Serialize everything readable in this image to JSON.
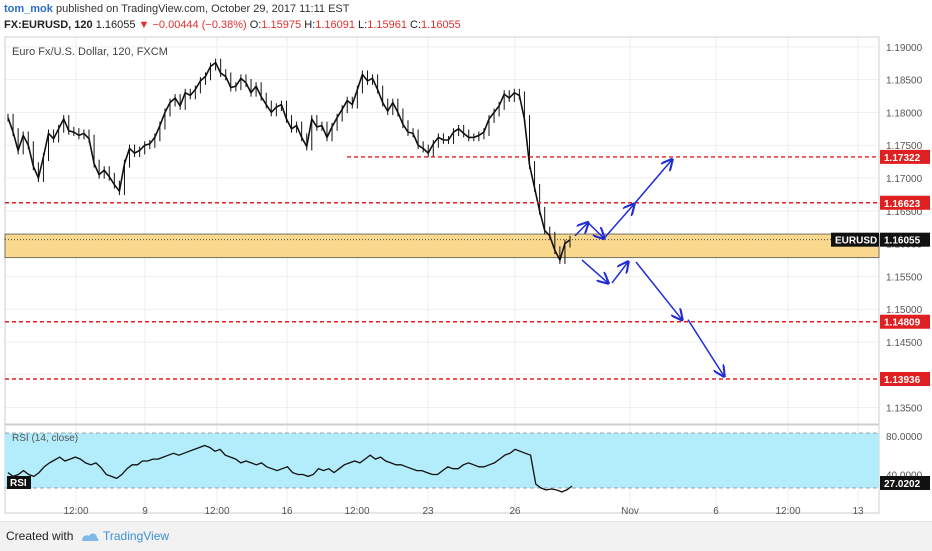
{
  "header": {
    "author": "tom_mok",
    "published_text": " published on TradingView.com, October 29, 2017 11:11 EST",
    "symbol": "FX:EURUSD, 120",
    "price": "1.16055",
    "change": "−0.00444 (−0.38%)",
    "ohlc": {
      "o_label": "O:",
      "o": "1.15975",
      "h_label": "H:",
      "h": "1.16091",
      "l_label": "L:",
      "l": "1.15961",
      "c_label": "C:",
      "c": "1.16055"
    }
  },
  "colors": {
    "up": "#1a1a1a",
    "down": "#1a1a1a",
    "level_line": "#e02020",
    "zone_fill": "#fad98e",
    "arrow": "#1f2dd6",
    "rsi_band": "#b3ecfa",
    "rsi_line": "#111111"
  },
  "chart_data": [
    {
      "type": "line",
      "description_label": "Euro Fx/U.S. Dollar, 120, FXCM",
      "x_ticks": [
        "12:00",
        "9",
        "12:00",
        "16",
        "12:00",
        "23",
        "26",
        "Nov",
        "6",
        "12:00",
        "13"
      ],
      "y_ticks": [
        "1.19000",
        "1.18500",
        "1.18000",
        "1.17500",
        "1.17000",
        "1.16500",
        "1.16000",
        "1.15500",
        "1.15000",
        "1.14500",
        "1.14000",
        "1.13500"
      ],
      "ylim": [
        1.1325,
        1.1915
      ],
      "series": [
        {
          "name": "EURUSD",
          "close": [
            1.1792,
            1.177,
            1.1742,
            1.1765,
            1.175,
            1.1718,
            1.17,
            1.1732,
            1.1768,
            1.176,
            1.1775,
            1.179,
            1.1772,
            1.177,
            1.1765,
            1.1768,
            1.176,
            1.1722,
            1.1705,
            1.1712,
            1.1702,
            1.169,
            1.168,
            1.1722,
            1.1745,
            1.1738,
            1.1742,
            1.175,
            1.1752,
            1.1762,
            1.178,
            1.18,
            1.1815,
            1.1822,
            1.181,
            1.183,
            1.1826,
            1.1835,
            1.1848,
            1.1855,
            1.187,
            1.1876,
            1.186,
            1.1855,
            1.1838,
            1.184,
            1.1852,
            1.1845,
            1.183,
            1.184,
            1.1824,
            1.1812,
            1.18,
            1.1808,
            1.1812,
            1.179,
            1.1775,
            1.178,
            1.1762,
            1.1748,
            1.179,
            1.1778,
            1.178,
            1.1762,
            1.1778,
            1.1792,
            1.1805,
            1.1818,
            1.1812,
            1.1835,
            1.1858,
            1.1848,
            1.1852,
            1.1835,
            1.1815,
            1.1802,
            1.1815,
            1.18,
            1.1782,
            1.177,
            1.1768,
            1.175,
            1.1745,
            1.1738,
            1.1752,
            1.1762,
            1.1758,
            1.1758,
            1.177,
            1.1775,
            1.1768,
            1.1762,
            1.1762,
            1.1765,
            1.177,
            1.179,
            1.18,
            1.181,
            1.1828,
            1.1822,
            1.183,
            1.1826,
            1.179,
            1.172,
            1.1685,
            1.165,
            1.162,
            1.1612,
            1.159,
            1.1575,
            1.16,
            1.1606
          ],
          "last_value": "1.16055"
        }
      ],
      "levels": [
        {
          "value": "1.17322",
          "start": "day 13 12:00"
        },
        {
          "value": "1.16623",
          "start": "chart start"
        },
        {
          "value": "1.14809",
          "start": "chart start"
        },
        {
          "value": "1.13936",
          "start": "chart start"
        }
      ],
      "zone": {
        "top": 1.16146,
        "bottom": 1.15786
      },
      "last_label": "EURUSD",
      "arrows_up": [
        [
          1.1612,
          1.1632
        ],
        [
          1.1632,
          1.1608
        ],
        [
          1.1608,
          1.166
        ],
        [
          1.166,
          1.1728
        ]
      ],
      "arrows_down": [
        [
          1.1575,
          1.154
        ],
        [
          1.154,
          1.1572
        ],
        [
          1.1572,
          1.1484
        ],
        [
          1.1484,
          1.1398
        ]
      ]
    },
    {
      "type": "line",
      "title": "RSI (14, close)",
      "series_label": "RSI",
      "y_ticks": [
        "80.0000",
        "40.0000"
      ],
      "band": [
        30,
        70
      ],
      "last_value": "27.0202",
      "values": [
        42,
        38,
        40,
        44,
        40,
        38,
        42,
        48,
        52,
        55,
        58,
        54,
        56,
        58,
        56,
        52,
        50,
        52,
        47,
        40,
        38,
        36,
        40,
        46,
        50,
        50,
        54,
        54,
        56,
        56,
        58,
        60,
        62,
        60,
        62,
        64,
        66,
        68,
        70,
        68,
        64,
        66,
        60,
        58,
        56,
        52,
        54,
        52,
        50,
        52,
        48,
        46,
        44,
        46,
        48,
        42,
        40,
        40,
        38,
        40,
        46,
        44,
        46,
        42,
        46,
        50,
        52,
        54,
        52,
        56,
        60,
        56,
        58,
        54,
        52,
        50,
        50,
        48,
        46,
        44,
        44,
        42,
        40,
        40,
        44,
        48,
        46,
        46,
        50,
        52,
        50,
        48,
        48,
        50,
        52,
        56,
        60,
        62,
        66,
        64,
        62,
        60,
        30,
        26,
        24,
        25,
        24,
        22,
        24,
        28
      ]
    }
  ],
  "footer": {
    "created_with": "Created with",
    "brand": "TradingView"
  }
}
